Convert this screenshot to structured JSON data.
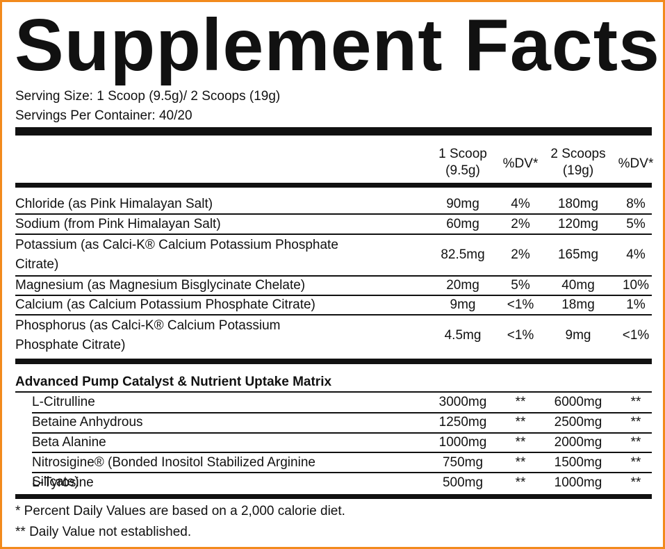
{
  "header": {
    "title": "Supplement Facts",
    "serving_size": "Serving Size: 1 Scoop (9.5g)/ 2 Scoops (19g)",
    "servings_per_container": "Servings Per Container: 40/20"
  },
  "table": {
    "columns": [
      {
        "line1": "1 Scoop",
        "line2": "(9.5g)"
      },
      "%DV*",
      {
        "line1": "2 Scoops",
        "line2": "(19g)"
      },
      "%DV*"
    ],
    "rows": [
      [
        "Chloride (as Pink Himalayan Salt)",
        "90mg",
        "4%",
        "180mg",
        "8%"
      ],
      [
        "Sodium (from Pink Himalayan Salt)",
        "60mg",
        "2%",
        "120mg",
        "5%"
      ],
      [
        "Potassium (as Calci-K® Calcium Potassium Phosphate Citrate)",
        "82.5mg",
        "2%",
        "165mg",
        "4%"
      ],
      [
        "Magnesium (as Magnesium Bisglycinate Chelate)",
        "20mg",
        "5%",
        "40mg",
        "10%"
      ],
      [
        "Calcium (as Calcium Potassium Phosphate Citrate)",
        "9mg",
        "<1%",
        "18mg",
        "1%"
      ],
      [
        "Phosphorus (as Calci-K® Calcium Potassium Phosphate Citrate)",
        "4.5mg",
        "<1%",
        "9mg",
        "<1%"
      ]
    ],
    "section": {
      "title": "Advanced Pump Catalyst & Nutrient Uptake Matrix",
      "rows": [
        [
          "L-Citrulline",
          "3000mg",
          "**",
          "6000mg",
          "**"
        ],
        [
          "Betaine Anhydrous",
          "1250mg",
          "**",
          "2500mg",
          "**"
        ],
        [
          "Beta Alanine",
          "1000mg",
          "**",
          "2000mg",
          "**"
        ],
        [
          "Nitrosigine® (Bonded Inositol Stabilized Arginine Silicate)",
          "750mg",
          "**",
          "1500mg",
          "**"
        ],
        [
          "L-Tyrosine",
          "500mg",
          "**",
          "1000mg",
          "**"
        ]
      ]
    }
  },
  "footnotes": [
    "*  Percent Daily Values are based on a 2,000 calorie diet.",
    "** Daily Value not established."
  ]
}
